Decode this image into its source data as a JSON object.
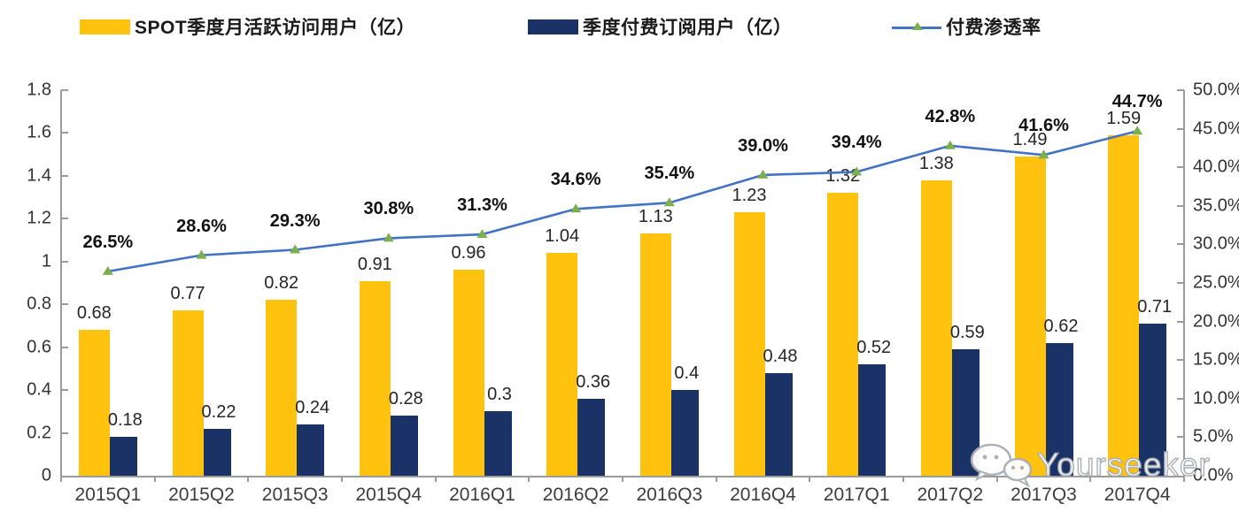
{
  "chart_data": {
    "type": "bar",
    "subtype": "combo-bar-line",
    "categories": [
      "2015Q1",
      "2015Q2",
      "2015Q3",
      "2015Q4",
      "2016Q1",
      "2016Q2",
      "2016Q3",
      "2016Q4",
      "2017Q1",
      "2017Q2",
      "2017Q3",
      "2017Q4"
    ],
    "series": [
      {
        "name": "SPOT季度月活跃访问用户（亿）",
        "type": "bar",
        "axis": "left",
        "color": "#FFC20E",
        "values": [
          0.68,
          0.77,
          0.82,
          0.91,
          0.96,
          1.04,
          1.13,
          1.23,
          1.32,
          1.38,
          1.49,
          1.59
        ],
        "labels": [
          "0.68",
          "0.77",
          "0.82",
          "0.91",
          "0.96",
          "1.04",
          "1.13",
          "1.23",
          "1.32",
          "1.38",
          "1.49",
          "1.59"
        ]
      },
      {
        "name": "季度付费订阅用户（亿）",
        "type": "bar",
        "axis": "left",
        "color": "#1B3266",
        "values": [
          0.18,
          0.22,
          0.24,
          0.28,
          0.3,
          0.36,
          0.4,
          0.48,
          0.52,
          0.59,
          0.62,
          0.71
        ],
        "labels": [
          "0.18",
          "0.22",
          "0.24",
          "0.28",
          "0.3",
          "0.36",
          "0.4",
          "0.48",
          "0.52",
          "0.59",
          "0.62",
          "0.71"
        ]
      },
      {
        "name": "付费渗透率",
        "type": "line",
        "axis": "right",
        "color": "#4472C4",
        "marker": "triangle",
        "marker_color": "#7CAF4E",
        "values": [
          26.5,
          28.6,
          29.3,
          30.8,
          31.3,
          34.6,
          35.4,
          39.0,
          39.4,
          42.8,
          41.6,
          44.7
        ],
        "labels": [
          "26.5%",
          "28.6%",
          "29.3%",
          "30.8%",
          "31.3%",
          "34.6%",
          "35.4%",
          "39.0%",
          "39.4%",
          "42.8%",
          "41.6%",
          "44.7%"
        ]
      }
    ],
    "left_axis": {
      "min": 0,
      "max": 1.8,
      "step": 0.2,
      "tick_labels": [
        "0",
        "0.2",
        "0.4",
        "0.6",
        "0.8",
        "1",
        "1.2",
        "1.4",
        "1.6",
        "1.8"
      ]
    },
    "right_axis": {
      "min": 0,
      "max": 50,
      "step": 5,
      "tick_labels": [
        "0.0%",
        "5.0%",
        "10.0%",
        "15.0%",
        "20.0%",
        "25.0%",
        "30.0%",
        "35.0%",
        "40.0%",
        "45.0%",
        "50.0%"
      ]
    },
    "grid": false,
    "legend_position": "top"
  },
  "watermark": {
    "text": "Yourseeker",
    "icon": "chat-bubbles-icon"
  }
}
